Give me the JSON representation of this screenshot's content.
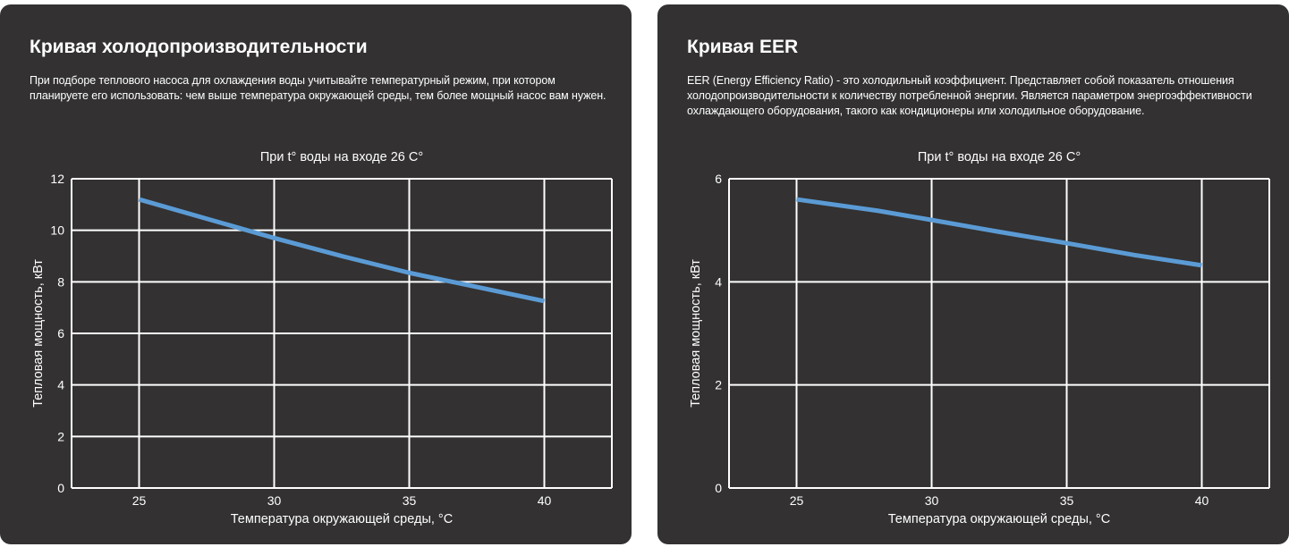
{
  "cards": [
    {
      "title": "Кривая холодопроизводительности",
      "description": "При подборе теплового насоса для охлаждения воды учитывайте температурный режим, при котором планируете его использовать: чем выше температура окружающей среды, тем более мощный насос вам нужен."
    },
    {
      "title": "Кривая EER",
      "description": "EER (Energy Efficiency Ratio) - это холодильный коэффициент. Представляет собой показатель отношения холодопроизводительности к количеству потребленной энергии. Является параметром энергоэффективности охлаждающего оборудования, такого как кондиционеры или холодильное оборудование."
    }
  ],
  "colors": {
    "card_background": "#333131",
    "line": "#5b9bd5",
    "grid": "#ffffff",
    "text": "#ffffff"
  },
  "chart_data": [
    {
      "type": "line",
      "title": "При t° воды на входе 26 C°",
      "xlabel": "Температура окружающей среды, °C",
      "ylabel": "Тепловая мощность, кВт",
      "xlim": [
        22.5,
        42.5
      ],
      "ylim": [
        0,
        12
      ],
      "x_ticks": [
        25,
        30,
        35,
        40
      ],
      "y_ticks": [
        0,
        2,
        4,
        6,
        8,
        10,
        12
      ],
      "grid": true,
      "series": [
        {
          "x": [
            25,
            27,
            30,
            32.5,
            35,
            37.5,
            40
          ],
          "values": [
            11.2,
            10.6,
            9.7,
            9.0,
            8.35,
            7.8,
            7.25
          ]
        }
      ]
    },
    {
      "type": "line",
      "title": "При t° воды на входе 26 C°",
      "xlabel": "Температура окружающей среды, °C",
      "ylabel": "Тепловая мощность, кВт",
      "xlim": [
        22.5,
        42.5
      ],
      "ylim": [
        0,
        6
      ],
      "x_ticks": [
        25,
        30,
        35,
        40
      ],
      "y_ticks": [
        0,
        2,
        4,
        6
      ],
      "grid": true,
      "series": [
        {
          "x": [
            25,
            28,
            30,
            32.5,
            35,
            37.5,
            40
          ],
          "values": [
            5.6,
            5.38,
            5.2,
            4.97,
            4.75,
            4.52,
            4.32
          ]
        }
      ]
    }
  ]
}
